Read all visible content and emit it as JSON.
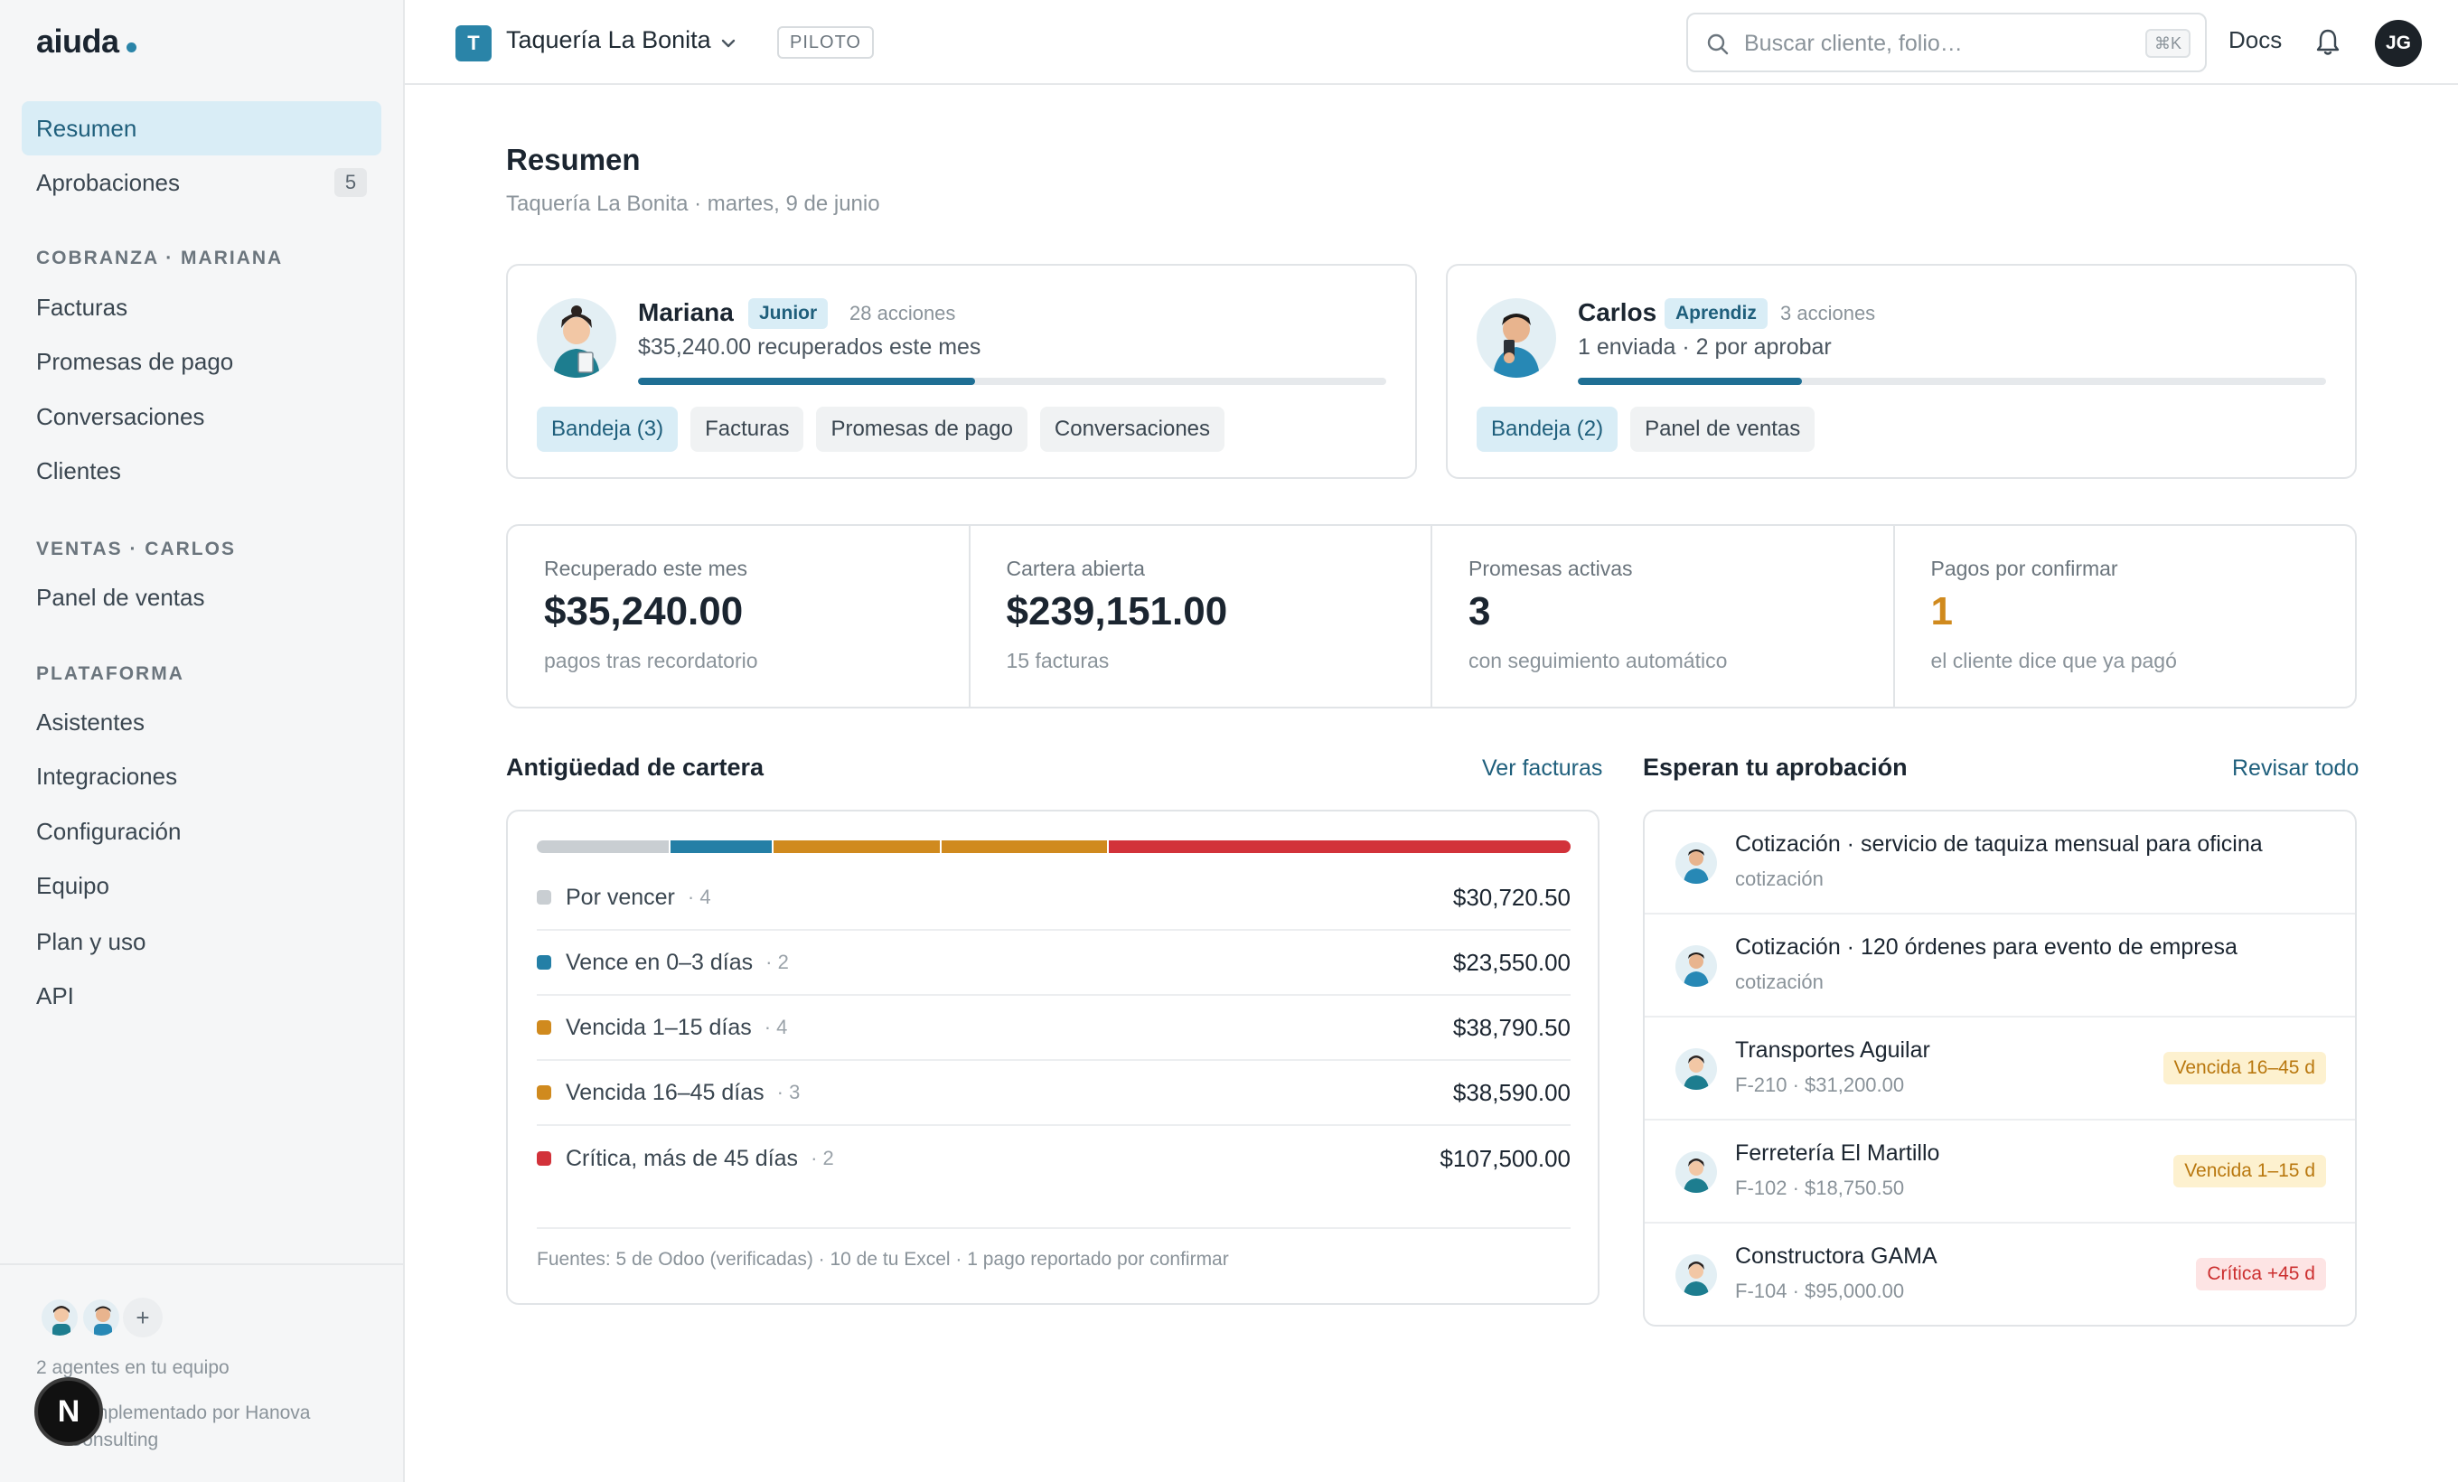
{
  "brand": {
    "name": "aiuda"
  },
  "sidebar": {
    "items": [
      {
        "label": "Resumen",
        "active": true
      },
      {
        "label": "Aprobaciones",
        "badge": "5"
      }
    ],
    "sections": [
      {
        "title": "COBRANZA · MARIANA",
        "items": [
          "Facturas",
          "Promesas de pago",
          "Conversaciones",
          "Clientes"
        ]
      },
      {
        "title": "VENTAS · CARLOS",
        "items": [
          "Panel de ventas"
        ]
      },
      {
        "title": "PLATAFORMA",
        "items": [
          "Asistentes",
          "Integraciones",
          "Configuración",
          "Equipo",
          "Plan y uso",
          "API"
        ]
      }
    ],
    "footer": {
      "team_text": "2 agentes en tu equipo",
      "impl_line1": "Implementado por Hanova",
      "impl_line2": "Consulting",
      "add_label": "+",
      "n_badge": "N"
    }
  },
  "topbar": {
    "workspace_initial": "T",
    "workspace_name": "Taquería La Bonita",
    "pilot_badge": "PILOTO",
    "search_placeholder": "Buscar cliente, folio…",
    "search_shortcut": "⌘K",
    "docs": "Docs",
    "user_initials": "JG"
  },
  "page": {
    "title": "Resumen",
    "subtitle": "Taquería La Bonita · martes, 9 de junio"
  },
  "agents": [
    {
      "name": "Mariana",
      "level": "Junior",
      "actions": "28 acciones",
      "stat": "$35,240.00 recuperados este mes",
      "progress": 0.45,
      "chips": [
        "Bandeja (3)",
        "Facturas",
        "Promesas de pago",
        "Conversaciones"
      ]
    },
    {
      "name": "Carlos",
      "level": "Aprendiz",
      "actions": "3 acciones",
      "stat": "1 enviada · 2 por aprobar",
      "progress": 0.3,
      "chips": [
        "Bandeja (2)",
        "Panel de ventas"
      ]
    }
  ],
  "kpis": [
    {
      "label": "Recuperado este mes",
      "value": "$35,240.00",
      "note": "pagos tras recordatorio"
    },
    {
      "label": "Cartera abierta",
      "value": "$239,151.00",
      "note": "15 facturas"
    },
    {
      "label": "Promesas activas",
      "value": "3",
      "note": "con seguimiento automático"
    },
    {
      "label": "Pagos por confirmar",
      "value": "1",
      "note": "el cliente dice que ya pagó"
    }
  ],
  "aging": {
    "title": "Antigüedad de cartera",
    "link": "Ver facturas",
    "rows": [
      {
        "label": "Por vencer",
        "count": "· 4",
        "amount": "$30,720.50",
        "value": 30720.5,
        "color": "#c9ced2"
      },
      {
        "label": "Vence en 0–3 días",
        "count": "· 2",
        "amount": "$23,550.00",
        "value": 23550.0,
        "color": "#247fa6"
      },
      {
        "label": "Vencida 1–15 días",
        "count": "· 4",
        "amount": "$38,790.50",
        "value": 38790.5,
        "color": "#d08a1e"
      },
      {
        "label": "Vencida 16–45 días",
        "count": "· 3",
        "amount": "$38,590.00",
        "value": 38590.0,
        "color": "#d08a1e"
      },
      {
        "label": "Crítica, más de 45 días",
        "count": "· 2",
        "amount": "$107,500.00",
        "value": 107500.0,
        "color": "#d2323a"
      }
    ],
    "footer": "Fuentes: 5 de Odoo (verificadas) · 10 de tu Excel · 1 pago reportado por confirmar"
  },
  "approvals": {
    "title": "Esperan tu aprobación",
    "link": "Revisar todo",
    "items": [
      {
        "title": "Cotización · servicio de taquiza mensual para oficina",
        "sub": "cotización",
        "agent": "carlos",
        "tag": "",
        "tag_type": ""
      },
      {
        "title": "Cotización · 120 órdenes para evento de empresa",
        "sub": "cotización",
        "agent": "carlos",
        "tag": "",
        "tag_type": ""
      },
      {
        "title": "Transportes Aguilar",
        "sub": "F-210 · $31,200.00",
        "agent": "mariana",
        "tag": "Vencida 16–45 d",
        "tag_type": "warn"
      },
      {
        "title": "Ferretería El Martillo",
        "sub": "F-102 · $18,750.50",
        "agent": "mariana",
        "tag": "Vencida 1–15 d",
        "tag_type": "warn"
      },
      {
        "title": "Constructora GAMA",
        "sub": "F-104 · $95,000.00",
        "agent": "mariana",
        "tag": "Crítica +45 d",
        "tag_type": "crit"
      }
    ]
  }
}
